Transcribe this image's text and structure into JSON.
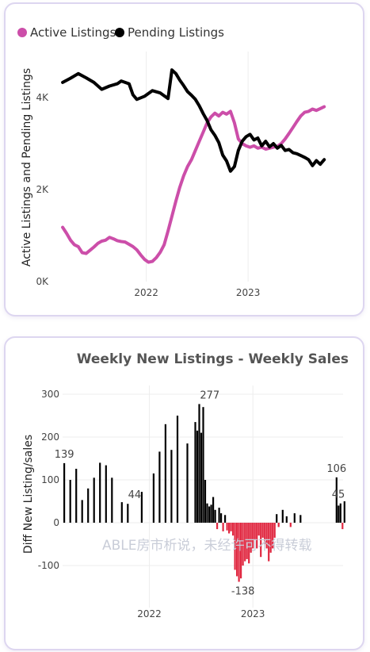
{
  "chart_data": [
    {
      "type": "line",
      "title": "",
      "xlabel": "",
      "ylabel": "Active Listings and Pending Listings",
      "ylim": [
        0,
        5000
      ],
      "xlim": [
        "2021-03-01",
        "2023-11-15"
      ],
      "y_ticks": [
        {
          "v": 0,
          "label": "0K"
        },
        {
          "v": 2000,
          "label": "2K"
        },
        {
          "v": 4000,
          "label": "4K"
        }
      ],
      "x_ticks": [
        {
          "v": "2022-01-01",
          "label": "2022"
        },
        {
          "v": "2023-01-01",
          "label": "2023"
        }
      ],
      "legend": {
        "position": "top-left"
      },
      "grid": "vertical",
      "series": [
        {
          "name": "Active Listings",
          "color": "#cc4ea9",
          "points": [
            [
              "2021-03-07",
              1180
            ],
            [
              "2021-03-21",
              1050
            ],
            [
              "2021-04-04",
              900
            ],
            [
              "2021-04-18",
              800
            ],
            [
              "2021-05-02",
              760
            ],
            [
              "2021-05-16",
              630
            ],
            [
              "2021-05-30",
              610
            ],
            [
              "2021-06-13",
              680
            ],
            [
              "2021-06-27",
              750
            ],
            [
              "2021-07-11",
              830
            ],
            [
              "2021-07-25",
              880
            ],
            [
              "2021-08-08",
              900
            ],
            [
              "2021-08-22",
              960
            ],
            [
              "2021-09-05",
              930
            ],
            [
              "2021-09-19",
              890
            ],
            [
              "2021-10-03",
              870
            ],
            [
              "2021-10-17",
              860
            ],
            [
              "2021-10-31",
              810
            ],
            [
              "2021-11-14",
              760
            ],
            [
              "2021-11-28",
              690
            ],
            [
              "2021-12-12",
              580
            ],
            [
              "2021-12-26",
              480
            ],
            [
              "2022-01-09",
              420
            ],
            [
              "2022-01-23",
              440
            ],
            [
              "2022-02-06",
              520
            ],
            [
              "2022-02-20",
              640
            ],
            [
              "2022-03-06",
              800
            ],
            [
              "2022-03-20",
              1100
            ],
            [
              "2022-04-03",
              1420
            ],
            [
              "2022-04-17",
              1750
            ],
            [
              "2022-05-01",
              2050
            ],
            [
              "2022-05-15",
              2300
            ],
            [
              "2022-05-29",
              2500
            ],
            [
              "2022-06-12",
              2650
            ],
            [
              "2022-06-26",
              2850
            ],
            [
              "2022-07-10",
              3050
            ],
            [
              "2022-07-24",
              3250
            ],
            [
              "2022-08-07",
              3450
            ],
            [
              "2022-08-21",
              3580
            ],
            [
              "2022-09-04",
              3660
            ],
            [
              "2022-09-18",
              3600
            ],
            [
              "2022-10-02",
              3680
            ],
            [
              "2022-10-16",
              3640
            ],
            [
              "2022-10-30",
              3700
            ],
            [
              "2022-11-13",
              3450
            ],
            [
              "2022-11-27",
              3100
            ],
            [
              "2022-12-11",
              3000
            ],
            [
              "2022-12-25",
              2950
            ],
            [
              "2023-01-08",
              2920
            ],
            [
              "2023-01-22",
              2950
            ],
            [
              "2023-02-05",
              2900
            ],
            [
              "2023-02-19",
              2920
            ],
            [
              "2023-03-05",
              2880
            ],
            [
              "2023-03-19",
              2900
            ],
            [
              "2023-04-02",
              2920
            ],
            [
              "2023-04-16",
              2940
            ],
            [
              "2023-04-30",
              3000
            ],
            [
              "2023-05-14",
              3100
            ],
            [
              "2023-05-28",
              3220
            ],
            [
              "2023-06-11",
              3350
            ],
            [
              "2023-06-25",
              3480
            ],
            [
              "2023-07-09",
              3600
            ],
            [
              "2023-07-23",
              3680
            ],
            [
              "2023-08-06",
              3700
            ],
            [
              "2023-08-20",
              3750
            ],
            [
              "2023-09-03",
              3720
            ],
            [
              "2023-09-17",
              3760
            ],
            [
              "2023-10-01",
              3800
            ]
          ]
        },
        {
          "name": "Pending Listings",
          "color": "#000000",
          "points": [
            [
              "2021-03-07",
              4330
            ],
            [
              "2021-04-04",
              4420
            ],
            [
              "2021-05-02",
              4520
            ],
            [
              "2021-05-30",
              4430
            ],
            [
              "2021-06-27",
              4330
            ],
            [
              "2021-07-25",
              4180
            ],
            [
              "2021-08-22",
              4250
            ],
            [
              "2021-09-19",
              4300
            ],
            [
              "2021-10-03",
              4360
            ],
            [
              "2021-10-31",
              4300
            ],
            [
              "2021-11-14",
              4060
            ],
            [
              "2021-11-28",
              3960
            ],
            [
              "2021-12-26",
              4030
            ],
            [
              "2022-01-23",
              4150
            ],
            [
              "2022-02-20",
              4100
            ],
            [
              "2022-03-20",
              3980
            ],
            [
              "2022-04-03",
              4600
            ],
            [
              "2022-04-17",
              4520
            ],
            [
              "2022-05-01",
              4380
            ],
            [
              "2022-05-15",
              4260
            ],
            [
              "2022-05-29",
              4130
            ],
            [
              "2022-06-12",
              4050
            ],
            [
              "2022-06-26",
              3960
            ],
            [
              "2022-07-10",
              3820
            ],
            [
              "2022-07-24",
              3650
            ],
            [
              "2022-08-07",
              3500
            ],
            [
              "2022-08-21",
              3300
            ],
            [
              "2022-09-04",
              3180
            ],
            [
              "2022-09-18",
              3020
            ],
            [
              "2022-10-02",
              2750
            ],
            [
              "2022-10-16",
              2620
            ],
            [
              "2022-10-30",
              2400
            ],
            [
              "2022-11-13",
              2500
            ],
            [
              "2022-11-27",
              2850
            ],
            [
              "2022-12-11",
              3050
            ],
            [
              "2022-12-25",
              3150
            ],
            [
              "2023-01-08",
              3200
            ],
            [
              "2023-01-22",
              3080
            ],
            [
              "2023-02-05",
              3120
            ],
            [
              "2023-02-19",
              2950
            ],
            [
              "2023-03-05",
              3050
            ],
            [
              "2023-03-19",
              2930
            ],
            [
              "2023-04-02",
              3000
            ],
            [
              "2023-04-16",
              2900
            ],
            [
              "2023-04-30",
              2960
            ],
            [
              "2023-05-14",
              2850
            ],
            [
              "2023-05-28",
              2870
            ],
            [
              "2023-06-11",
              2800
            ],
            [
              "2023-06-25",
              2780
            ],
            [
              "2023-07-09",
              2740
            ],
            [
              "2023-07-23",
              2700
            ],
            [
              "2023-08-06",
              2650
            ],
            [
              "2023-08-20",
              2520
            ],
            [
              "2023-09-03",
              2630
            ],
            [
              "2023-09-17",
              2550
            ],
            [
              "2023-10-01",
              2650
            ]
          ]
        }
      ]
    },
    {
      "type": "bar",
      "title": "Weekly New Listings - Weekly Sales",
      "xlabel": "",
      "ylabel": "Diff New Listing/sales",
      "ylim": [
        -200,
        320
      ],
      "xlim": [
        "2021-03-01",
        "2023-11-15"
      ],
      "y_ticks": [
        {
          "v": -100,
          "label": "-100"
        },
        {
          "v": 0,
          "label": "0"
        },
        {
          "v": 100,
          "label": "100"
        },
        {
          "v": 200,
          "label": "200"
        },
        {
          "v": 300,
          "label": "300"
        }
      ],
      "x_ticks": [
        {
          "v": "2022-01-01",
          "label": "2022"
        },
        {
          "v": "2023-01-01",
          "label": "2023"
        }
      ],
      "grid": "both",
      "positive_color": "#000000",
      "negative_color": "#e0263f",
      "data_labels": [
        {
          "x": "2021-03-07",
          "y": 139,
          "text": "139"
        },
        {
          "x": "2021-11-10",
          "y": 44,
          "text": "44"
        },
        {
          "x": "2022-08-02",
          "y": 277,
          "text": "277"
        },
        {
          "x": "2022-11-27",
          "y": -138,
          "text": "-138"
        },
        {
          "x": "2023-10-23",
          "y": 106,
          "text": "106"
        },
        {
          "x": "2023-11-06",
          "y": 45,
          "text": "45"
        }
      ],
      "watermark": "ABLE房市析说，未经许可不得转载",
      "points": [
        [
          "2021-03-07",
          139
        ],
        [
          "2021-03-28",
          100
        ],
        [
          "2021-04-18",
          126
        ],
        [
          "2021-05-09",
          53
        ],
        [
          "2021-05-30",
          80
        ],
        [
          "2021-06-20",
          105
        ],
        [
          "2021-07-11",
          140
        ],
        [
          "2021-08-01",
          134
        ],
        [
          "2021-08-22",
          105
        ],
        [
          "2021-09-26",
          48
        ],
        [
          "2021-10-17",
          44
        ],
        [
          "2021-12-05",
          72
        ],
        [
          "2022-01-16",
          115
        ],
        [
          "2022-02-06",
          166
        ],
        [
          "2022-02-27",
          230
        ],
        [
          "2022-03-20",
          170
        ],
        [
          "2022-04-10",
          250
        ],
        [
          "2022-05-15",
          185
        ],
        [
          "2022-06-12",
          235
        ],
        [
          "2022-06-19",
          215
        ],
        [
          "2022-06-26",
          277
        ],
        [
          "2022-07-03",
          210
        ],
        [
          "2022-07-10",
          270
        ],
        [
          "2022-07-17",
          100
        ],
        [
          "2022-07-24",
          45
        ],
        [
          "2022-07-31",
          38
        ],
        [
          "2022-08-07",
          42
        ],
        [
          "2022-08-14",
          60
        ],
        [
          "2022-08-21",
          30
        ],
        [
          "2022-08-28",
          -15
        ],
        [
          "2022-09-04",
          35
        ],
        [
          "2022-09-11",
          22
        ],
        [
          "2022-09-18",
          -20
        ],
        [
          "2022-09-25",
          18
        ],
        [
          "2022-10-02",
          -18
        ],
        [
          "2022-10-09",
          -25
        ],
        [
          "2022-10-16",
          -20
        ],
        [
          "2022-10-23",
          -30
        ],
        [
          "2022-10-30",
          -110
        ],
        [
          "2022-11-06",
          -125
        ],
        [
          "2022-11-13",
          -138
        ],
        [
          "2022-11-20",
          -130
        ],
        [
          "2022-11-27",
          -100
        ],
        [
          "2022-12-04",
          -90
        ],
        [
          "2022-12-11",
          -85
        ],
        [
          "2022-12-18",
          -95
        ],
        [
          "2022-12-25",
          -70
        ],
        [
          "2023-01-01",
          -60
        ],
        [
          "2023-01-08",
          -40
        ],
        [
          "2023-01-15",
          -60
        ],
        [
          "2023-01-22",
          -30
        ],
        [
          "2023-01-29",
          -80
        ],
        [
          "2023-02-05",
          -35
        ],
        [
          "2023-02-12",
          -50
        ],
        [
          "2023-02-19",
          -60
        ],
        [
          "2023-02-26",
          -90
        ],
        [
          "2023-03-05",
          -70
        ],
        [
          "2023-03-12",
          -60
        ],
        [
          "2023-03-19",
          -35
        ],
        [
          "2023-03-26",
          20
        ],
        [
          "2023-04-02",
          -10
        ],
        [
          "2023-04-16",
          30
        ],
        [
          "2023-04-30",
          15
        ],
        [
          "2023-05-14",
          -10
        ],
        [
          "2023-05-28",
          22
        ],
        [
          "2023-06-18",
          18
        ],
        [
          "2023-10-23",
          106
        ],
        [
          "2023-10-30",
          40
        ],
        [
          "2023-11-06",
          45
        ],
        [
          "2023-11-13",
          -15
        ],
        [
          "2023-11-20",
          50
        ],
        [
          "2023-11-27",
          -20
        ],
        [
          "2023-12-04",
          45
        ]
      ]
    }
  ]
}
